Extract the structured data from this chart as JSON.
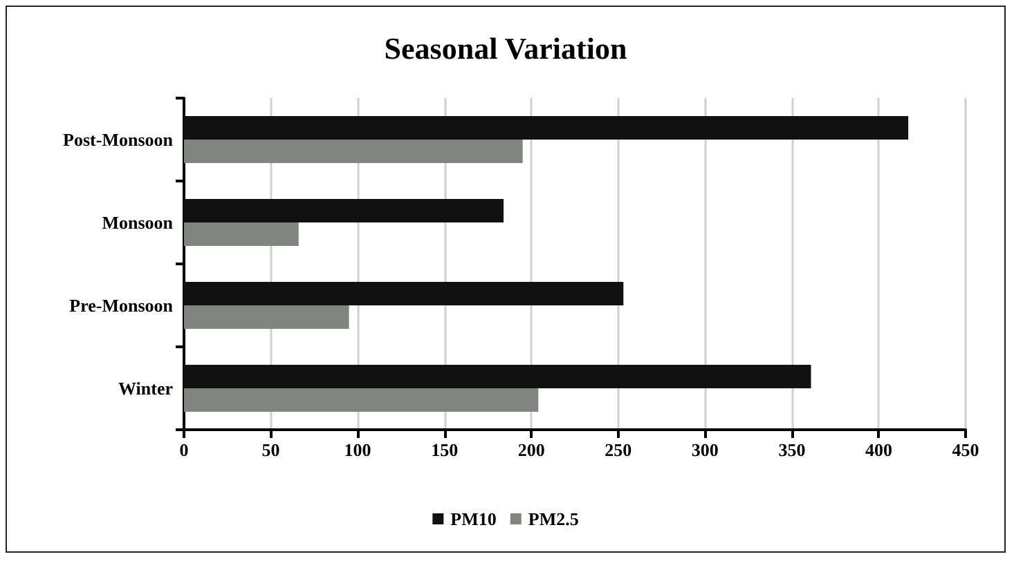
{
  "chart_data": {
    "type": "bar",
    "orientation": "horizontal",
    "title": "Seasonal Variation",
    "categories": [
      "Post-Monsoon",
      "Monsoon",
      "Pre-Monsoon",
      "Winter"
    ],
    "series": [
      {
        "name": "PM10",
        "color": "#111111",
        "values": [
          417,
          184,
          253,
          361
        ]
      },
      {
        "name": "PM2.5",
        "color": "#808580",
        "values": [
          195,
          66,
          95,
          204
        ]
      }
    ],
    "xlim": [
      0,
      450
    ],
    "xticks": [
      0,
      50,
      100,
      150,
      200,
      250,
      300,
      350,
      400,
      450
    ],
    "grid": "x",
    "legend": "bottom"
  }
}
